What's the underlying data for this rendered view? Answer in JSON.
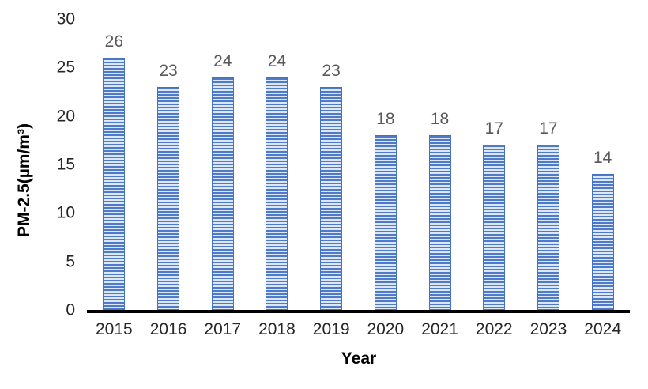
{
  "chart_data": {
    "type": "bar",
    "categories": [
      "2015",
      "2016",
      "2017",
      "2018",
      "2019",
      "2020",
      "2021",
      "2022",
      "2023",
      "2024"
    ],
    "values": [
      26,
      23,
      24,
      24,
      23,
      18,
      18,
      17,
      17,
      14
    ],
    "title": "",
    "xlabel": "Year",
    "ylabel": "PM-2.5(µm/m³)",
    "ylim": [
      0,
      30
    ],
    "yticks": [
      0,
      5,
      10,
      15,
      20,
      25,
      30
    ],
    "grid": false,
    "legend": null,
    "data_labels": true,
    "colors": {
      "bar_stripe_dark": "#4f7ac9",
      "bar_stripe_light": "#dce7f7",
      "bar_border": "#4372c4",
      "data_label": "#595959",
      "axis_text": "#262626",
      "axis_line": "#000000",
      "background": "#ffffff"
    }
  }
}
